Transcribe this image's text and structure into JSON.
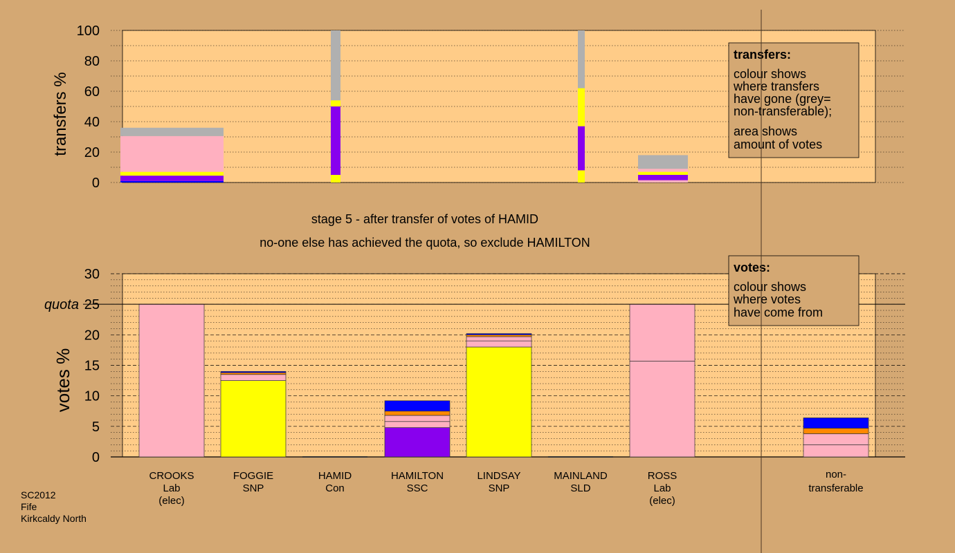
{
  "colors": {
    "background": "#d4a873",
    "plot_bg": "#ffcc88",
    "Lab": "#ffb0c0",
    "SNP": "#ffff00",
    "SSC": "#8800ee",
    "Con": "#0000ff",
    "SLD": "#ff8800",
    "non_transferable": "#b0b0b0"
  },
  "chart_data": [
    {
      "type": "bar",
      "name": "transfers",
      "ylabel": "transfers %",
      "ylim": [
        0,
        100
      ],
      "yticks": [
        "0",
        "20",
        "40",
        "60",
        "80",
        "100"
      ],
      "grid": "dotted every 10",
      "legend": {
        "placement": "top-right",
        "title": "transfers:",
        "lines": [
          "colour shows",
          "where transfers",
          "have gone (grey=",
          "non-transferable);",
          "area shows",
          "amount of votes"
        ]
      },
      "bars": [
        {
          "candidate": "CROOKS",
          "style": "wide",
          "stack": [
            {
              "party": "Con",
              "value": 1
            },
            {
              "party": "SSC",
              "value": 3.5
            },
            {
              "party": "SNP",
              "value": 2.5
            },
            {
              "party": "Lab",
              "value": 23.5
            },
            {
              "party": "non_transferable",
              "value": 5.5
            }
          ]
        },
        {
          "candidate": "HAMID",
          "style": "thin",
          "stack": [
            {
              "party": "SNP",
              "value": 5
            },
            {
              "party": "SSC",
              "value": 45
            },
            {
              "party": "SNP",
              "value": 4
            },
            {
              "party": "non_transferable",
              "value": 46
            }
          ]
        },
        {
          "candidate": "LINDSAY",
          "style": "thin",
          "stack": [
            {
              "party": "SNP",
              "value": 8
            },
            {
              "party": "SSC",
              "value": 29
            },
            {
              "party": "SNP",
              "value": 25
            },
            {
              "party": "non_transferable",
              "value": 38
            }
          ]
        },
        {
          "candidate": "ROSS",
          "style": "wide",
          "stack": [
            {
              "party": "Lab",
              "value": 1.5
            },
            {
              "party": "SSC",
              "value": 3.5
            },
            {
              "party": "SNP",
              "value": 2
            },
            {
              "party": "Lab",
              "value": 2
            },
            {
              "party": "non_transferable",
              "value": 9
            }
          ]
        }
      ]
    },
    {
      "type": "bar",
      "name": "votes",
      "ylabel": "votes %",
      "ylim": [
        0,
        30
      ],
      "yticks": [
        "0",
        "5",
        "10",
        "15",
        "20",
        "25",
        "30"
      ],
      "quota": {
        "value": 25,
        "label": "quota"
      },
      "legend": {
        "placement": "top-right",
        "title": "votes:",
        "lines": [
          "colour shows",
          "where votes",
          "have come from"
        ]
      },
      "categories": [
        {
          "name": "CROOKS",
          "party": "Lab",
          "note": "(elec)",
          "stack": [
            {
              "party": "Lab",
              "value": 25
            }
          ]
        },
        {
          "name": "FOGGIE",
          "party": "SNP",
          "note": "",
          "stack": [
            {
              "party": "SNP",
              "value": 12.5
            },
            {
              "party": "Lab",
              "value": 1
            },
            {
              "party": "SLD",
              "value": 0.3
            },
            {
              "party": "Con",
              "value": 0.2
            }
          ]
        },
        {
          "name": "HAMID",
          "party": "Con",
          "note": "",
          "stack": []
        },
        {
          "name": "HAMILTON",
          "party": "SSC",
          "note": "",
          "stack": [
            {
              "party": "SSC",
              "value": 4.8
            },
            {
              "party": "Lab",
              "value": 1
            },
            {
              "party": "Lab",
              "value": 1
            },
            {
              "party": "SLD",
              "value": 0.7
            },
            {
              "party": "Con",
              "value": 1.7
            }
          ]
        },
        {
          "name": "LINDSAY",
          "party": "SNP",
          "note": "",
          "stack": [
            {
              "party": "SNP",
              "value": 18
            },
            {
              "party": "Lab",
              "value": 1
            },
            {
              "party": "Lab",
              "value": 0.7
            },
            {
              "party": "SLD",
              "value": 0.3
            },
            {
              "party": "Con",
              "value": 0.2
            }
          ]
        },
        {
          "name": "MAINLAND",
          "party": "SLD",
          "note": "",
          "stack": []
        },
        {
          "name": "ROSS",
          "party": "Lab",
          "note": "(elec)",
          "stack": [
            {
              "party": "Lab",
              "value": 15.7
            },
            {
              "party": "Lab",
              "value": 9.3
            }
          ]
        }
      ],
      "non_transferable": {
        "label_line1": "non-",
        "label_line2": "transferable",
        "stack": [
          {
            "party": "Lab",
            "value": 2
          },
          {
            "party": "Lab",
            "value": 1.8
          },
          {
            "party": "SLD",
            "value": 0.9
          },
          {
            "party": "Con",
            "value": 1.7
          }
        ]
      }
    }
  ],
  "stage_text": {
    "line1": "stage 5 - after transfer of votes of HAMID",
    "line2": "no-one else has achieved the quota, so exclude HAMILTON"
  },
  "footer": {
    "line1": "SC2012",
    "line2": "Fife",
    "line3": "Kirkcaldy North"
  }
}
